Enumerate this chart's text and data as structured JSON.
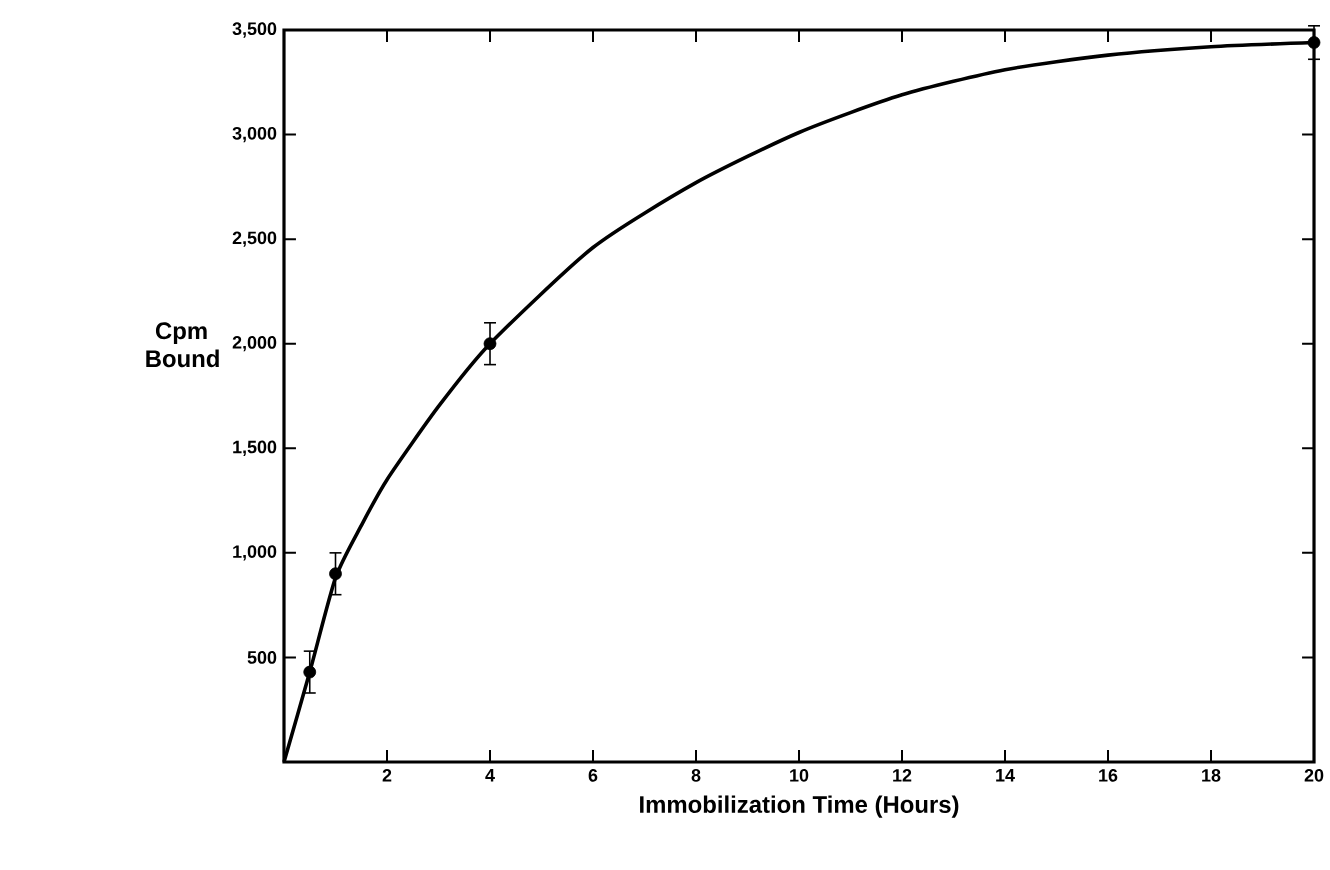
{
  "chart_data": {
    "type": "line",
    "xlabel": "Immobilization Time (Hours)",
    "ylabel": "Cpm Bound",
    "xlim": [
      0,
      20
    ],
    "ylim": [
      0,
      3500
    ],
    "xticks": [
      2,
      4,
      6,
      8,
      10,
      12,
      14,
      16,
      18,
      20
    ],
    "yticks": [
      500,
      {
        "value": 1000,
        "label": "1,000"
      },
      {
        "value": 1500,
        "label": "1,500"
      },
      {
        "value": 2000,
        "label": "2,000"
      },
      {
        "value": 2500,
        "label": "2,500"
      },
      {
        "value": 3000,
        "label": "3,000"
      },
      {
        "value": 3500,
        "label": "3,500"
      }
    ],
    "series": [
      {
        "color": "#000000",
        "marker": "none",
        "line_style": "solid",
        "x": [
          0,
          0.5,
          1,
          1.5,
          2,
          3,
          4,
          6,
          8,
          10,
          12,
          14,
          16,
          18,
          20
        ],
        "values": [
          0,
          430,
          880,
          1130,
          1350,
          1700,
          2000,
          2460,
          2770,
          3010,
          3190,
          3310,
          3380,
          3420,
          3440
        ]
      },
      {
        "type": "scatter",
        "color": "#000000",
        "marker": "circle",
        "x": [
          0.5,
          1,
          4,
          20
        ],
        "values": [
          430,
          900,
          2000,
          3440
        ],
        "errors": [
          100,
          100,
          100,
          80
        ]
      }
    ]
  }
}
